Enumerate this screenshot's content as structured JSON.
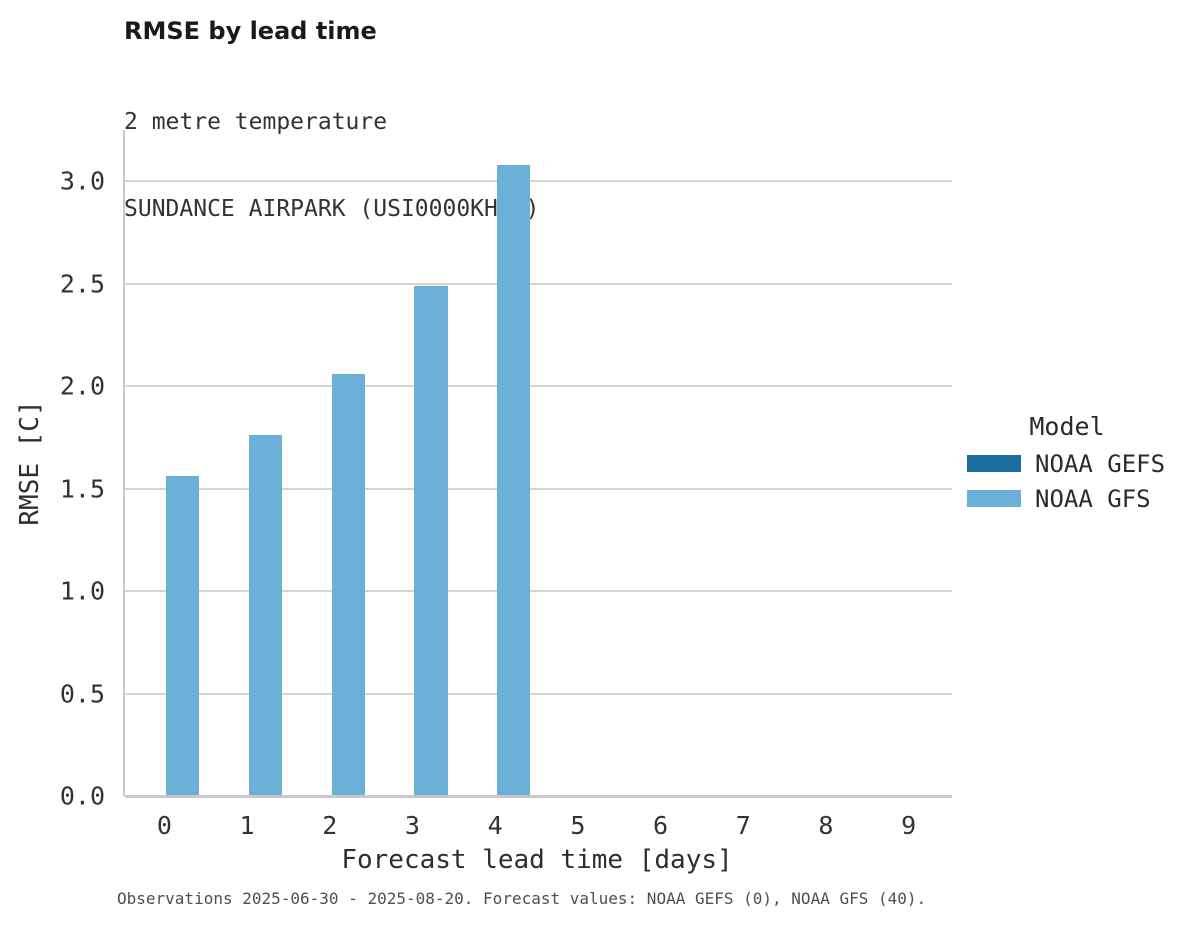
{
  "chart_data": {
    "type": "bar",
    "title": "RMSE by lead time",
    "subtitle_lines": [
      "2 metre temperature",
      "SUNDANCE AIRPARK (USI0000KHSD)"
    ],
    "xlabel": "Forecast lead time [days]",
    "ylabel": "RMSE [C]",
    "categories": [
      "0",
      "1",
      "2",
      "3",
      "4",
      "5",
      "6",
      "7",
      "8",
      "9"
    ],
    "series": [
      {
        "name": "NOAA GEFS",
        "color": "#1b6d9e",
        "values": [
          null,
          null,
          null,
          null,
          null,
          null,
          null,
          null,
          null,
          null
        ]
      },
      {
        "name": "NOAA GFS",
        "color": "#6ab0d7",
        "values": [
          1.56,
          1.76,
          2.06,
          2.49,
          3.08,
          null,
          null,
          null,
          null,
          null
        ]
      }
    ],
    "ylim": [
      0,
      3.25
    ],
    "yticks": [
      "0.0",
      "0.5",
      "1.0",
      "1.5",
      "2.0",
      "2.5",
      "3.0"
    ],
    "grid": true,
    "legend_title": "Model",
    "legend_position": "right",
    "caption": "Observations 2025-06-30 - 2025-08-20. Forecast values: NOAA GEFS (0), NOAA GFS (40)."
  }
}
